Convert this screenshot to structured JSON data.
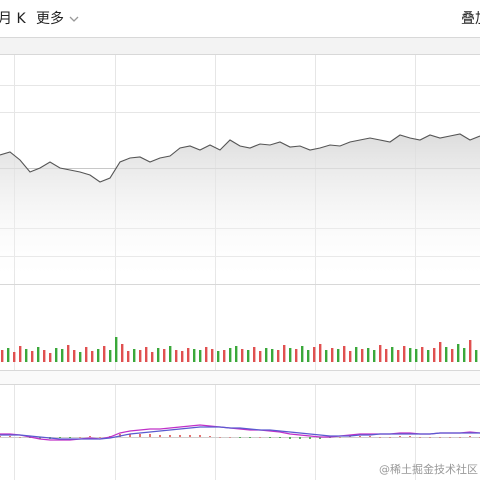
{
  "toolbar": {
    "period": "月 K",
    "more": "更多",
    "overlay": "叠加"
  },
  "watermark": "@稀土掘金技术社区",
  "chart_data": [
    {
      "type": "area",
      "color": "#555555",
      "ylim": [
        0,
        230
      ],
      "values": [
        130,
        133,
        125,
        113,
        117,
        123,
        117,
        115,
        113,
        110,
        103,
        107,
        123,
        127,
        128,
        123,
        127,
        129,
        137,
        139,
        135,
        140,
        135,
        145,
        139,
        137,
        141,
        140,
        143,
        138,
        139,
        135,
        137,
        140,
        139,
        143,
        145,
        147,
        145,
        143,
        150,
        147,
        145,
        150,
        147,
        149,
        151,
        145,
        149
      ]
    },
    {
      "type": "bar",
      "ylim": [
        0,
        77
      ],
      "up_color": "#3aa83a",
      "down_color": "#e05050",
      "values": [
        12,
        14,
        10,
        16,
        13,
        11,
        15,
        12,
        9,
        14,
        13,
        17,
        12,
        10,
        15,
        11,
        13,
        16,
        12,
        25,
        18,
        11,
        13,
        12,
        15,
        10,
        14,
        13,
        16,
        12,
        11,
        14,
        13,
        12,
        15,
        13,
        11,
        12,
        14,
        16,
        13,
        12,
        15,
        11,
        14,
        13,
        12,
        17,
        14,
        13,
        16,
        12,
        15,
        18,
        12,
        14,
        13,
        16,
        11,
        15,
        13,
        14,
        12,
        17,
        13,
        15,
        12,
        16,
        14,
        13,
        15,
        12,
        14,
        20,
        15,
        13,
        18,
        14,
        22,
        12
      ],
      "up": [
        false,
        true,
        false,
        false,
        true,
        false,
        true,
        false,
        false,
        true,
        true,
        false,
        false,
        true,
        false,
        false,
        true,
        false,
        true,
        true,
        false,
        false,
        true,
        false,
        false,
        false,
        true,
        false,
        true,
        false,
        false,
        false,
        true,
        true,
        false,
        false,
        true,
        false,
        true,
        true,
        false,
        true,
        false,
        false,
        true,
        true,
        false,
        false,
        true,
        false,
        true,
        true,
        false,
        false,
        true,
        false,
        true,
        false,
        false,
        true,
        false,
        true,
        true,
        false,
        false,
        true,
        false,
        false,
        true,
        true,
        false,
        true,
        false,
        false,
        true,
        false,
        true,
        true,
        false,
        true
      ]
    },
    {
      "type": "line",
      "ylim": [
        -43,
        52
      ],
      "series": [
        {
          "color": "#c030c8",
          "values": [
            3,
            3,
            2,
            0,
            -2,
            -3,
            -3,
            -3,
            -2,
            -1,
            -2,
            0,
            4,
            6,
            7,
            8,
            8,
            9,
            10,
            11,
            12,
            11,
            10,
            9,
            8,
            7,
            7,
            6,
            5,
            3,
            2,
            1,
            0,
            0,
            1,
            2,
            3,
            3,
            3,
            3,
            4,
            4,
            3,
            3,
            4,
            4,
            4,
            5,
            4
          ]
        },
        {
          "color": "#5a5ad0",
          "values": [
            2,
            2,
            2,
            1,
            0,
            -1,
            -2,
            -2,
            -2,
            -2,
            -2,
            -1,
            1,
            3,
            4,
            5,
            6,
            7,
            8,
            9,
            10,
            10,
            10,
            9,
            9,
            8,
            7,
            7,
            6,
            5,
            4,
            3,
            2,
            1,
            1,
            1,
            2,
            2,
            3,
            3,
            3,
            3,
            3,
            3,
            4,
            4,
            4,
            4,
            4
          ]
        }
      ],
      "histogram": {
        "up_color": "#e05050",
        "down_color": "#3aa83a",
        "values": [
          1,
          1,
          0,
          -1,
          -2,
          -2,
          -1,
          -1,
          0,
          1,
          0,
          1,
          3,
          3,
          3,
          3,
          2,
          2,
          2,
          2,
          2,
          1,
          0,
          0,
          -1,
          -1,
          0,
          -1,
          -1,
          -2,
          -2,
          -2,
          -2,
          -1,
          0,
          1,
          1,
          1,
          0,
          0,
          1,
          1,
          0,
          0,
          0,
          0,
          0,
          1,
          0
        ]
      }
    }
  ]
}
